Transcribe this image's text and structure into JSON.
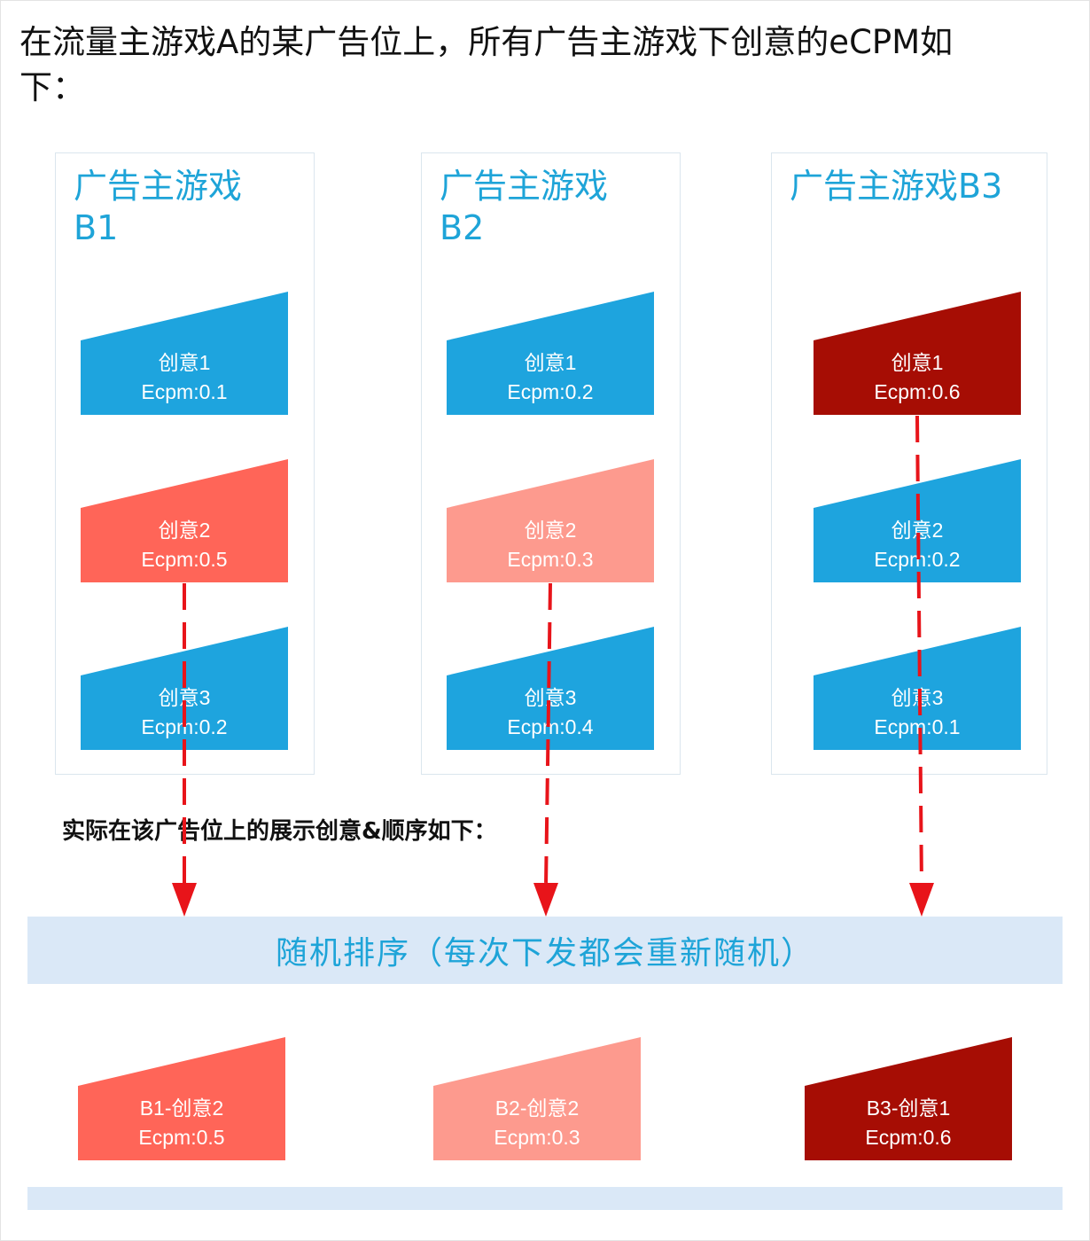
{
  "header": {
    "title": "在流量主游戏A的某广告位上，所有广告主游戏下创意的eCPM如下："
  },
  "colors": {
    "blue": "#1ea4de",
    "red": "#ff6558",
    "pink": "#fd9a8e",
    "darkred": "#a60d04",
    "arrow": "#e8141a",
    "panel_title": "#1ea4d8",
    "band": "#dae8f7"
  },
  "panels": [
    {
      "title": "广告主游戏\nB1",
      "creatives": [
        {
          "name": "创意1",
          "ecpm": "Ecpm:0.1",
          "color": "blue"
        },
        {
          "name": "创意2",
          "ecpm": "Ecpm:0.5",
          "color": "red"
        },
        {
          "name": "创意3",
          "ecpm": "Ecpm:0.2",
          "color": "blue"
        }
      ]
    },
    {
      "title": "广告主游戏\nB2",
      "creatives": [
        {
          "name": "创意1",
          "ecpm": "Ecpm:0.2",
          "color": "blue"
        },
        {
          "name": "创意2",
          "ecpm": "Ecpm:0.3",
          "color": "pink"
        },
        {
          "name": "创意3",
          "ecpm": "Ecpm:0.4",
          "color": "blue"
        }
      ]
    },
    {
      "title": "广告主游戏B3",
      "creatives": [
        {
          "name": "创意1",
          "ecpm": "Ecpm:0.6",
          "color": "darkred"
        },
        {
          "name": "创意2",
          "ecpm": "Ecpm:0.2",
          "color": "blue"
        },
        {
          "name": "创意3",
          "ecpm": "Ecpm:0.1",
          "color": "blue"
        }
      ]
    }
  ],
  "caption": "实际在该广告位上的展示创意&顺序如下：",
  "shuffle_band": {
    "label": "随机排序（每次下发都会重新随机）"
  },
  "results": [
    {
      "name": "B1-创意2",
      "ecpm": "Ecpm:0.5",
      "color": "red"
    },
    {
      "name": "B2-创意2",
      "ecpm": "Ecpm:0.3",
      "color": "pink"
    },
    {
      "name": "B3-创意1",
      "ecpm": "Ecpm:0.6",
      "color": "darkred"
    }
  ]
}
